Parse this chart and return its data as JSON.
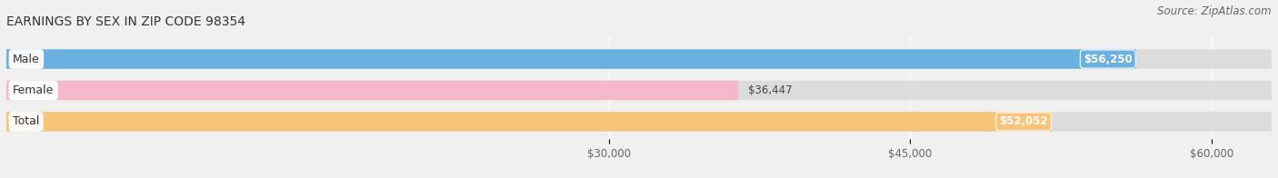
{
  "title": "EARNINGS BY SEX IN ZIP CODE 98354",
  "source": "Source: ZipAtlas.com",
  "categories": [
    "Male",
    "Female",
    "Total"
  ],
  "values": [
    56250,
    36447,
    52052
  ],
  "bar_colors": [
    "#6ab0e0",
    "#f5b8cb",
    "#f7c47a"
  ],
  "xlim_min": 0,
  "xlim_max": 63000,
  "x_ticks": [
    30000,
    45000,
    60000
  ],
  "x_tick_labels": [
    "$30,000",
    "$45,000",
    "$60,000"
  ],
  "value_labels": [
    "$56,250",
    "$36,447",
    "$52,052"
  ],
  "label_inside": [
    true,
    false,
    true
  ],
  "bg_color": "#f0f0f0",
  "bar_bg_color": "#dcdcdc",
  "title_fontsize": 10,
  "source_fontsize": 8.5,
  "tick_fontsize": 8.5,
  "bar_label_fontsize": 8.5,
  "cat_label_fontsize": 9
}
